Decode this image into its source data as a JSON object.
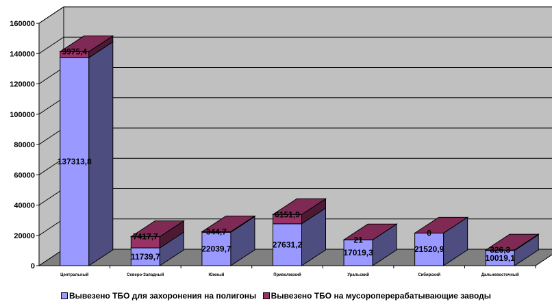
{
  "chart_data": {
    "type": "bar",
    "stacked": true,
    "three_d": true,
    "categories": [
      "Центральный",
      "Северо-Западный",
      "Южный",
      "Приволжский",
      "Уральский",
      "Сибирский",
      "Дальневосточный"
    ],
    "series": [
      {
        "name": "Вывезено ТБО для захоронения на полигоны",
        "values": [
          137313.8,
          11739.7,
          22039.7,
          27631.2,
          17019.3,
          21520.9,
          10019.1
        ],
        "labels": [
          "137313,8",
          "11739,7",
          "22039,7",
          "27631,2",
          "17019,3",
          "21520,9",
          "10019,1"
        ],
        "color": "#9999ff",
        "side_color": "#4d4d80",
        "top_color": "#ccccff"
      },
      {
        "name": "Вывезено ТБО на мусороперерабатывающие заводы",
        "values": [
          3975.4,
          7417.7,
          344.7,
          6151.9,
          21,
          0,
          326.3
        ],
        "labels": [
          "3975,4",
          "7417,7",
          "344,7",
          "6151,9",
          "21",
          "0",
          "326,3"
        ],
        "color": "#993366",
        "side_color": "#4d1a33",
        "top_color": "#7f2a55"
      }
    ],
    "y_ticks": [
      "0",
      "20000",
      "40000",
      "60000",
      "80000",
      "100000",
      "120000",
      "140000",
      "160000"
    ],
    "ylim": [
      0,
      160000
    ],
    "grid": true,
    "legend_position": "bottom",
    "title": "",
    "xlabel": "",
    "ylabel": ""
  }
}
